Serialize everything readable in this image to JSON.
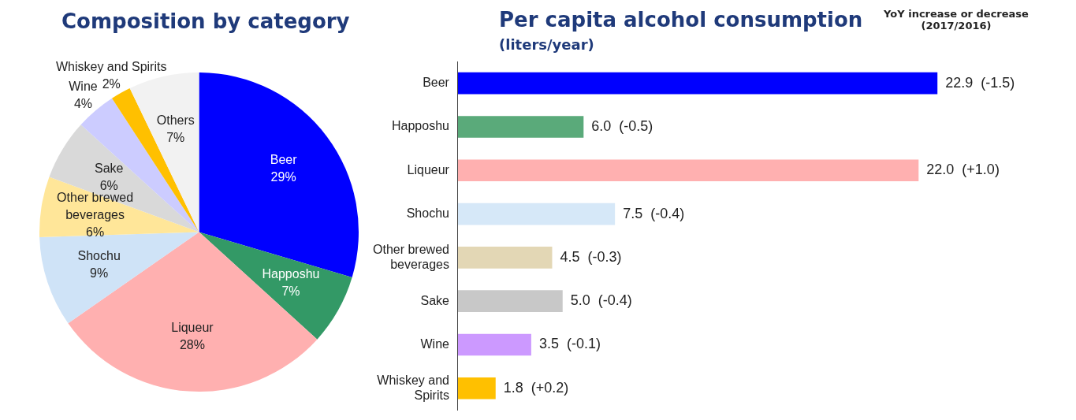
{
  "chart_data": [
    {
      "type": "pie",
      "title": "Composition by category",
      "categories": [
        "Beer",
        "Happoshu",
        "Liqueur",
        "Shochu",
        "Other brewed beverages",
        "Sake",
        "Wine",
        "Whiskey and Spirits",
        "Others"
      ],
      "values": [
        29,
        7,
        28,
        9,
        6,
        6,
        4,
        2,
        7
      ],
      "value_labels": [
        "29%",
        "7%",
        "28%",
        "9%",
        "6%",
        "6%",
        "4%",
        "2%",
        "7%"
      ],
      "colors": [
        "#0000ff",
        "#339966",
        "#ffb0b0",
        "#cfe3f7",
        "#ffe699",
        "#d9d9d9",
        "#ccccff",
        "#ffc000",
        "#f2f2f2"
      ]
    },
    {
      "type": "bar",
      "orientation": "horizontal",
      "title": "Per capita alcohol consumption",
      "subtitle": "(liters/year)",
      "annotations": [
        "YoY increase or decrease (2017/2016)"
      ],
      "tick_labels": "y",
      "categories": [
        "Beer",
        "Happoshu",
        "Liqueur",
        "Shochu",
        "Other brewed beverages",
        "Sake",
        "Wine",
        "Whiskey and Spirits"
      ],
      "values": [
        22.9,
        6.0,
        22.0,
        7.5,
        4.5,
        5.0,
        3.5,
        1.8
      ],
      "value_labels": [
        "22.9  (-1.5)",
        "6.0  (-0.5)",
        "22.0  (+1.0)",
        "7.5  (-0.4)",
        "4.5  (-0.3)",
        "5.0  (-0.4)",
        "3.5  (-0.1)",
        "1.8  (+0.2)"
      ],
      "colors": [
        "#0000ff",
        "#5aaa7a",
        "#ffb0b0",
        "#d6e8f8",
        "#e3d7b5",
        "#c8c8c8",
        "#cc99ff",
        "#ffc000"
      ]
    }
  ]
}
